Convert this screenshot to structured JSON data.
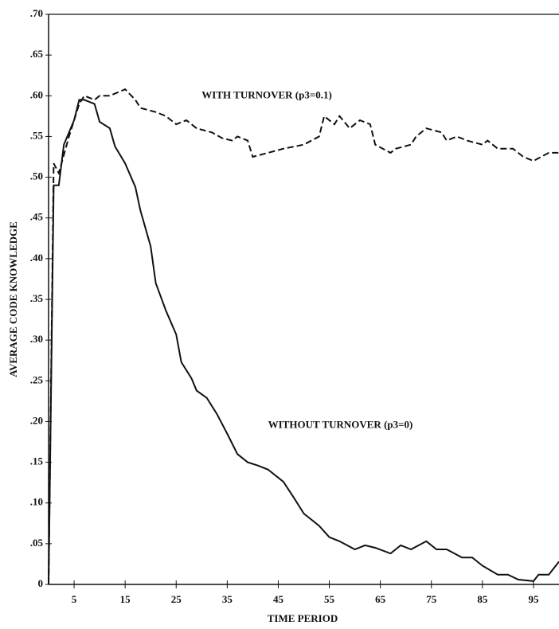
{
  "chart_data": {
    "type": "line",
    "xlabel": "TIME PERIOD",
    "ylabel": "AVERAGE CODE KNOWLEDGE",
    "annotations": [
      {
        "text": "WITH TURNOVER (p3=0.1)",
        "x": 30,
        "y": 0.6
      },
      {
        "text": "WITHOUT TURNOVER (p3=0)",
        "x": 43,
        "y": 0.195
      }
    ],
    "xlim": [
      0,
      100
    ],
    "xticks": [
      5,
      15,
      25,
      35,
      45,
      55,
      65,
      75,
      85,
      95
    ],
    "ylim": [
      0,
      0.7
    ],
    "yticks": [
      {
        "value": 0,
        "label": "0"
      },
      {
        "value": 0.05,
        "label": ".05"
      },
      {
        "value": 0.1,
        "label": ".10"
      },
      {
        "value": 0.15,
        "label": ".15"
      },
      {
        "value": 0.2,
        "label": ".20"
      },
      {
        "value": 0.25,
        "label": ".25"
      },
      {
        "value": 0.3,
        "label": ".30"
      },
      {
        "value": 0.35,
        "label": ".35"
      },
      {
        "value": 0.4,
        "label": ".40"
      },
      {
        "value": 0.45,
        "label": ".45"
      },
      {
        "value": 0.5,
        "label": ".50"
      },
      {
        "value": 0.55,
        "label": ".55"
      },
      {
        "value": 0.6,
        "label": ".60"
      },
      {
        "value": 0.65,
        "label": ".65"
      },
      {
        "value": 0.7,
        "label": ".70"
      }
    ],
    "grid": false,
    "series": [
      {
        "color": "#111111",
        "style": "dashed",
        "x": [
          0,
          1,
          2,
          4,
          6,
          7,
          9,
          10,
          12,
          15,
          17,
          18,
          21,
          23,
          25,
          27,
          29,
          32,
          34,
          36,
          37,
          39,
          40,
          43,
          46,
          50,
          53,
          54,
          56,
          57,
          59,
          61,
          63,
          64,
          67,
          68,
          71,
          72,
          74,
          77,
          78,
          80,
          82,
          85,
          86,
          88,
          91,
          93,
          95,
          98,
          100
        ],
        "values": [
          0,
          0.517,
          0.505,
          0.55,
          0.59,
          0.6,
          0.595,
          0.6,
          0.6,
          0.608,
          0.595,
          0.585,
          0.58,
          0.575,
          0.565,
          0.57,
          0.56,
          0.555,
          0.548,
          0.545,
          0.55,
          0.545,
          0.525,
          0.53,
          0.535,
          0.54,
          0.55,
          0.575,
          0.565,
          0.575,
          0.56,
          0.57,
          0.565,
          0.54,
          0.53,
          0.535,
          0.54,
          0.55,
          0.56,
          0.555,
          0.545,
          0.55,
          0.545,
          0.54,
          0.545,
          0.535,
          0.535,
          0.525,
          0.52,
          0.53,
          0.53
        ]
      },
      {
        "color": "#111111",
        "style": "solid",
        "x": [
          0,
          1,
          2,
          3,
          5,
          6,
          7,
          9,
          10,
          12,
          13,
          15,
          17,
          18,
          20,
          21,
          23,
          25,
          26,
          28,
          29,
          31,
          33,
          35,
          37,
          39,
          41,
          43,
          46,
          48,
          50,
          53,
          55,
          57,
          60,
          62,
          64,
          67,
          69,
          71,
          74,
          76,
          78,
          81,
          83,
          85,
          88,
          90,
          92,
          95,
          96,
          98,
          100
        ],
        "values": [
          0,
          0.49,
          0.49,
          0.54,
          0.57,
          0.595,
          0.595,
          0.59,
          0.568,
          0.56,
          0.538,
          0.517,
          0.488,
          0.459,
          0.415,
          0.37,
          0.336,
          0.307,
          0.273,
          0.253,
          0.238,
          0.229,
          0.209,
          0.185,
          0.16,
          0.15,
          0.146,
          0.141,
          0.126,
          0.107,
          0.087,
          0.072,
          0.058,
          0.053,
          0.043,
          0.048,
          0.045,
          0.038,
          0.048,
          0.043,
          0.053,
          0.043,
          0.043,
          0.033,
          0.033,
          0.023,
          0.012,
          0.012,
          0.006,
          0.004,
          0.012,
          0.012,
          0.028
        ]
      }
    ]
  }
}
